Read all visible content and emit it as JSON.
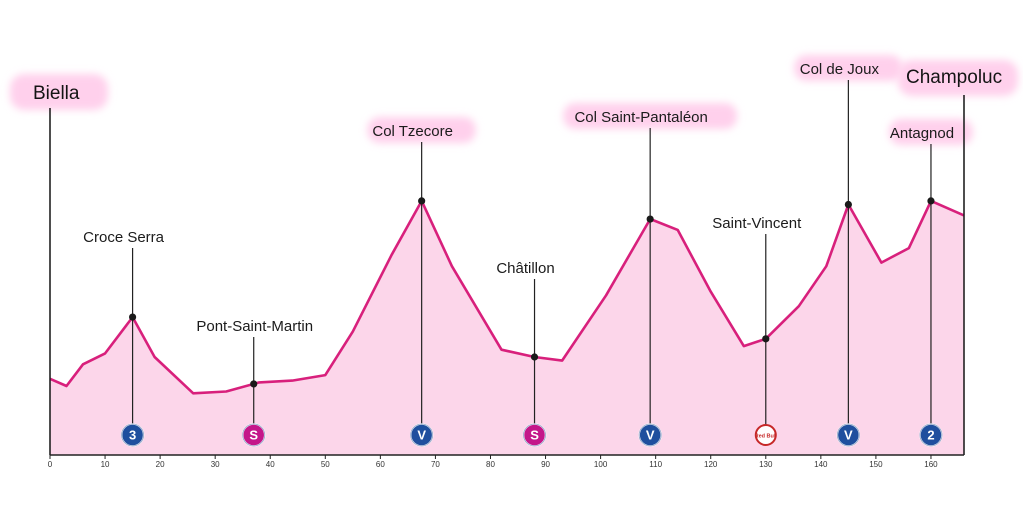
{
  "colors": {
    "profile_fill": "#fcd6ea",
    "profile_line": "#d8207c",
    "highlight": "#ffd0ec",
    "axis": "#222222",
    "badge_blue": "#1f4f9e",
    "badge_magenta": "#c4168a"
  },
  "axis": {
    "ticks": [
      "0",
      "10",
      "20",
      "30",
      "40",
      "50",
      "60",
      "70",
      "80",
      "90",
      "100",
      "110",
      "120",
      "130",
      "140",
      "150",
      "160"
    ]
  },
  "chart_data": {
    "type": "area",
    "x_unit": "km",
    "xlim": [
      0,
      166
    ],
    "profile": [
      [
        0,
        0.21
      ],
      [
        3,
        0.19
      ],
      [
        6,
        0.25
      ],
      [
        10,
        0.28
      ],
      [
        15,
        0.38
      ],
      [
        19,
        0.27
      ],
      [
        26,
        0.17
      ],
      [
        32,
        0.175
      ],
      [
        38,
        0.2
      ],
      [
        44,
        0.205
      ],
      [
        50,
        0.22
      ],
      [
        55,
        0.34
      ],
      [
        62,
        0.55
      ],
      [
        67.5,
        0.7
      ],
      [
        73,
        0.52
      ],
      [
        82,
        0.29
      ],
      [
        88,
        0.27
      ],
      [
        93,
        0.26
      ],
      [
        101,
        0.44
      ],
      [
        109,
        0.65
      ],
      [
        114,
        0.62
      ],
      [
        120,
        0.45
      ],
      [
        126,
        0.3
      ],
      [
        130,
        0.32
      ],
      [
        136,
        0.41
      ],
      [
        141,
        0.52
      ],
      [
        145,
        0.69
      ],
      [
        151,
        0.53
      ],
      [
        156,
        0.57
      ],
      [
        160,
        0.7
      ],
      [
        163,
        0.68
      ],
      [
        166,
        0.66
      ]
    ],
    "labels": {
      "start": "Biella",
      "finish": "Champoluc"
    },
    "points": [
      {
        "name": "Croce Serra",
        "km": 15,
        "badge": "3",
        "badge_type": "gpm"
      },
      {
        "name": "Pont-Saint-Martin",
        "km": 37,
        "badge": "S",
        "badge_type": "sprint"
      },
      {
        "name": "Col Tzecore",
        "km": 67.5,
        "badge": "V",
        "badge_type": "gpm"
      },
      {
        "name": "Châtillon",
        "km": 88,
        "badge": "S",
        "badge_type": "sprint"
      },
      {
        "name": "Col Saint-Pantaléon",
        "km": 109,
        "badge": "V",
        "badge_type": "gpm"
      },
      {
        "name": "Saint-Vincent",
        "km": 130,
        "badge": "Red Bull",
        "badge_type": "redbull"
      },
      {
        "name": "Col de Joux",
        "km": 145,
        "badge": "V",
        "badge_type": "gpm"
      },
      {
        "name": "Antagnod",
        "km": 160,
        "badge": "2",
        "badge_type": "gpm"
      }
    ]
  }
}
